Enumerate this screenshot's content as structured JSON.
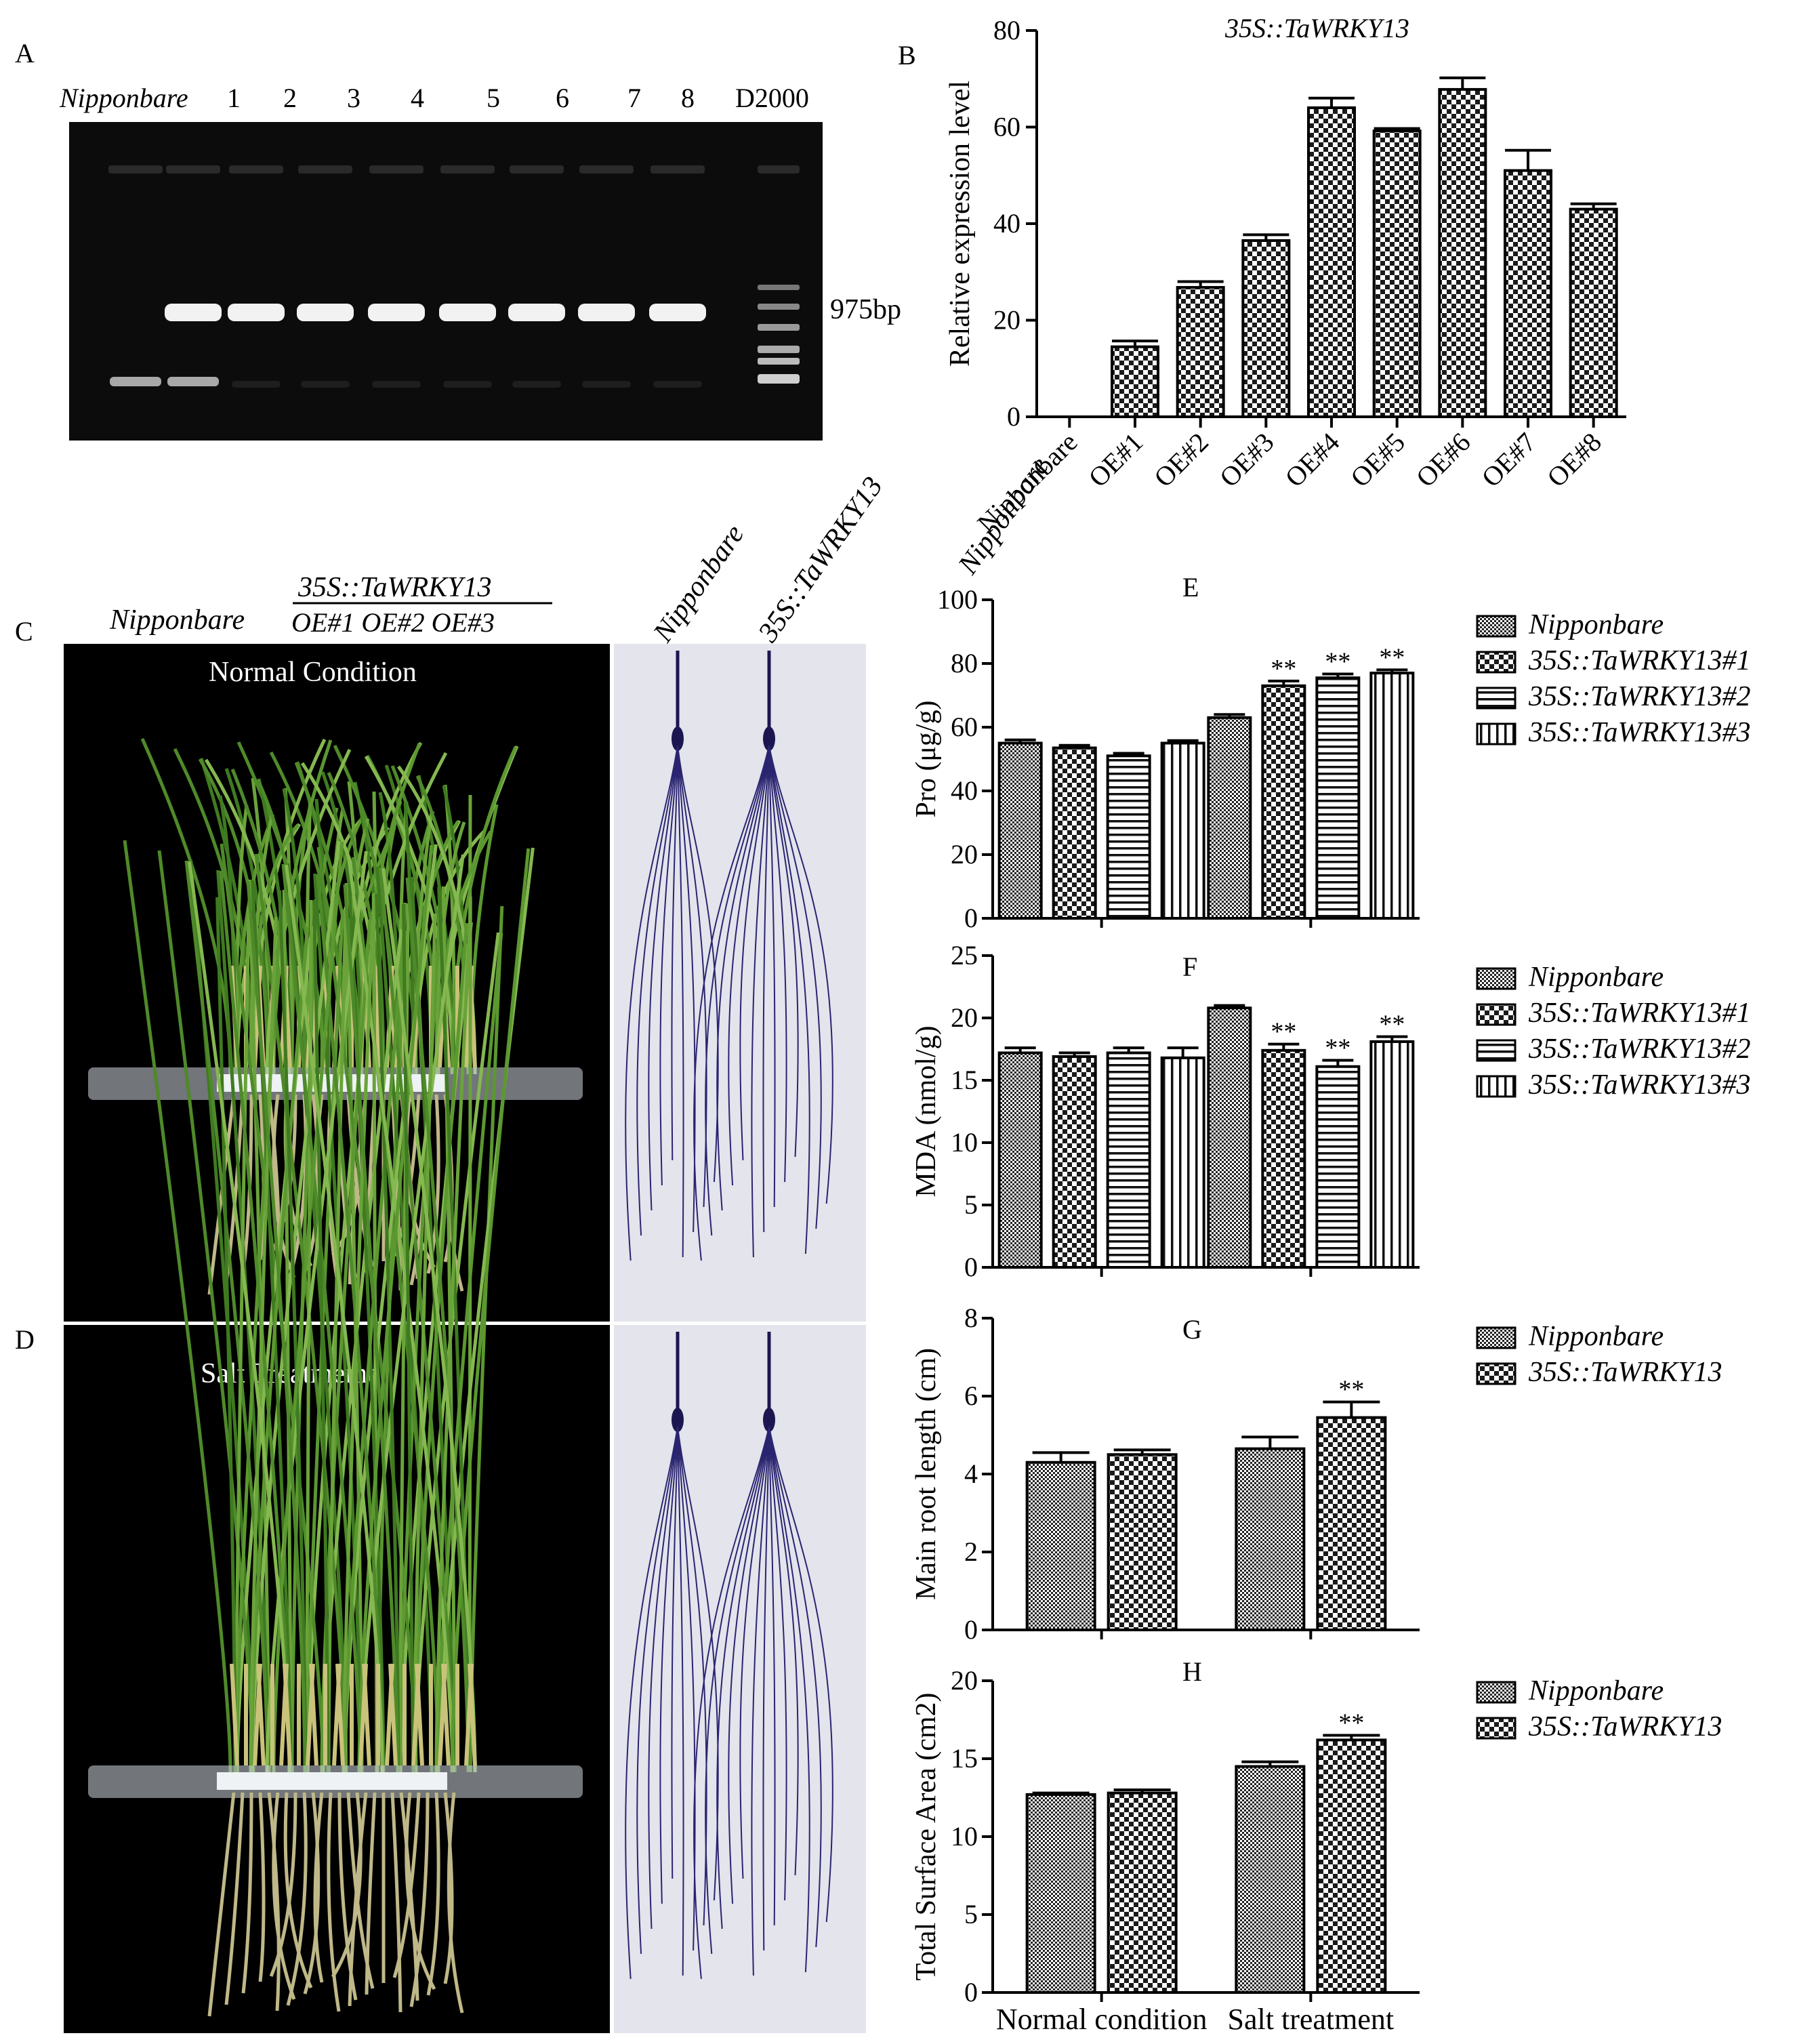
{
  "panels": {
    "A": {
      "letter": "A",
      "lane_labels": [
        "Nipponbare",
        "1",
        "2",
        "3",
        "4",
        "5",
        "6",
        "7",
        "8",
        "D2000"
      ],
      "band_label": "975bp"
    },
    "C": {
      "letter": "C",
      "group_wt": "Nipponbare",
      "group_oe_title": "35S::TaWRKY13",
      "group_oe_lines": "OE#1 OE#2 OE#3",
      "condition": "Normal Condition",
      "root_labels": [
        "Nipponbare",
        "35S::TaWRKY13"
      ]
    },
    "D": {
      "letter": "D",
      "condition": "Salt  Treatmemt"
    }
  },
  "chart_data": [
    {
      "id": "B",
      "type": "bar",
      "letter": "B",
      "title": "35S::TaWRKY13",
      "ylabel": "Relative expression level",
      "xlabel": "",
      "ylim": [
        0,
        80
      ],
      "yticks": [
        0,
        20,
        40,
        60,
        80
      ],
      "categories": [
        "Nipponbare",
        "OE#1",
        "OE#2",
        "OE#3",
        "OE#4",
        "OE#5",
        "OE#6",
        "OE#7",
        "OE#8"
      ],
      "values": [
        0,
        14.5,
        26.8,
        36.5,
        64,
        59.2,
        67.8,
        51,
        43
      ],
      "errors": [
        0,
        1.2,
        1.2,
        1.2,
        2.0,
        0.5,
        2.4,
        4.2,
        1.1
      ],
      "pattern": "checker"
    },
    {
      "id": "E",
      "type": "bar",
      "letter": "E",
      "ylabel": "Pro  (μg/g)",
      "ylim": [
        0,
        100
      ],
      "yticks": [
        0,
        20,
        40,
        60,
        80,
        100
      ],
      "groups": [
        "Normal condition",
        "Salt treatment"
      ],
      "series": [
        {
          "name": "Nipponbare",
          "pattern": "fine",
          "values": [
            55,
            63
          ],
          "errors": [
            1.0,
            1.0
          ],
          "sig": [
            "",
            ""
          ]
        },
        {
          "name": "35S::TaWRKY13#1",
          "pattern": "checker",
          "values": [
            53.5,
            73
          ],
          "errors": [
            0.8,
            1.5
          ],
          "sig": [
            "",
            "**"
          ]
        },
        {
          "name": "35S::TaWRKY13#2",
          "pattern": "hstripe",
          "values": [
            51,
            75.5
          ],
          "errors": [
            0.8,
            1.2
          ],
          "sig": [
            "",
            "**"
          ]
        },
        {
          "name": "35S::TaWRKY13#3",
          "pattern": "vstripe",
          "values": [
            55,
            77
          ],
          "errors": [
            0.8,
            1.0
          ],
          "sig": [
            "",
            "**"
          ]
        }
      ],
      "legend_position": "right"
    },
    {
      "id": "F",
      "type": "bar",
      "letter": "F",
      "ylabel": "MDA (nmol/g)",
      "ylim": [
        0,
        25
      ],
      "yticks": [
        0,
        5,
        10,
        15,
        20,
        25
      ],
      "groups": [
        "Normal condition",
        "Salt treatment"
      ],
      "series": [
        {
          "name": "Nipponbare",
          "pattern": "fine",
          "values": [
            17.2,
            20.8
          ],
          "errors": [
            0.4,
            0.2
          ],
          "sig": [
            "",
            ""
          ]
        },
        {
          "name": "35S::TaWRKY13#1",
          "pattern": "checker",
          "values": [
            16.9,
            17.4
          ],
          "errors": [
            0.3,
            0.5
          ],
          "sig": [
            "",
            "**"
          ]
        },
        {
          "name": "35S::TaWRKY13#2",
          "pattern": "hstripe",
          "values": [
            17.2,
            16.1
          ],
          "errors": [
            0.4,
            0.5
          ],
          "sig": [
            "",
            "**"
          ]
        },
        {
          "name": "35S::TaWRKY13#3",
          "pattern": "vstripe",
          "values": [
            16.8,
            18.1
          ],
          "errors": [
            0.8,
            0.4
          ],
          "sig": [
            "",
            "**"
          ]
        }
      ],
      "legend_position": "right"
    },
    {
      "id": "G",
      "type": "bar",
      "letter": "G",
      "ylabel": "Main root length (cm)",
      "ylim": [
        0,
        8
      ],
      "yticks": [
        0,
        2,
        4,
        6,
        8
      ],
      "groups": [
        "Normal condition",
        "Salt treatment"
      ],
      "series": [
        {
          "name": "Nipponbare",
          "pattern": "fine",
          "values": [
            4.3,
            4.65
          ],
          "errors": [
            0.25,
            0.3
          ],
          "sig": [
            "",
            ""
          ]
        },
        {
          "name": "35S::TaWRKY13",
          "pattern": "checker",
          "values": [
            4.5,
            5.45
          ],
          "errors": [
            0.12,
            0.4
          ],
          "sig": [
            "",
            "**"
          ]
        }
      ],
      "legend_position": "right"
    },
    {
      "id": "H",
      "type": "bar",
      "letter": "H",
      "ylabel": "Total Surface Area (cm2)",
      "ylim": [
        0,
        20
      ],
      "yticks": [
        0,
        5,
        10,
        15,
        20
      ],
      "groups": [
        "Normal condition",
        "Salt treatment"
      ],
      "series": [
        {
          "name": "Nipponbare",
          "pattern": "fine",
          "values": [
            12.7,
            14.5
          ],
          "errors": [
            0.1,
            0.3
          ],
          "sig": [
            "",
            ""
          ]
        },
        {
          "name": "35S::TaWRKY13",
          "pattern": "checker",
          "values": [
            12.8,
            16.2
          ],
          "errors": [
            0.2,
            0.3
          ],
          "sig": [
            "",
            "**"
          ]
        }
      ],
      "legend_position": "right"
    }
  ]
}
